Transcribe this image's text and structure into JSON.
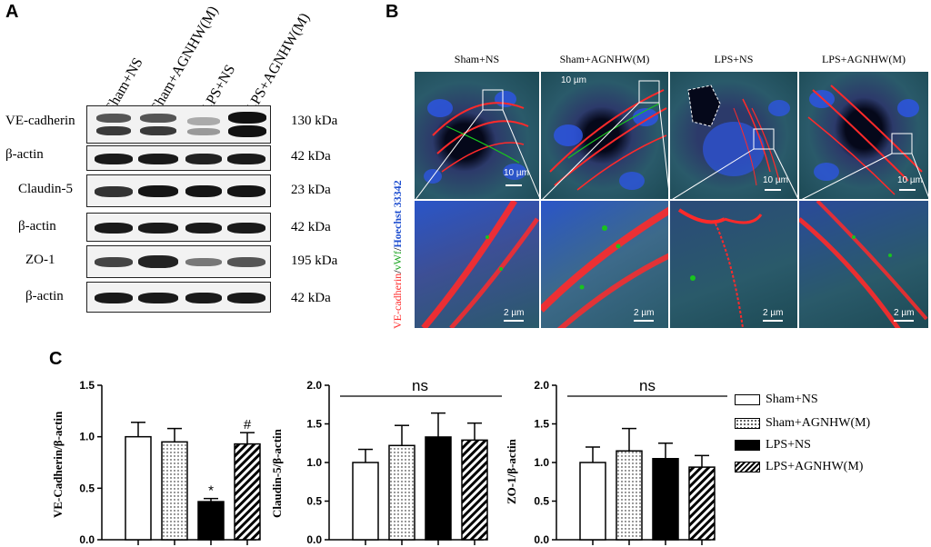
{
  "panels": {
    "a": "A",
    "b": "B",
    "c": "C"
  },
  "groups": [
    "Sham+NS",
    "Sham+AGNHW(M)",
    "LPS+NS",
    "LPS+AGNHW(M)"
  ],
  "blot": {
    "rows": [
      {
        "protein": "VE-cadherin",
        "kda": "130 kDa"
      },
      {
        "protein": "β-actin",
        "kda": "42 kDa"
      },
      {
        "protein": "Claudin-5",
        "kda": "23 kDa"
      },
      {
        "protein": "β-actin",
        "kda": "42 kDa"
      },
      {
        "protein": "ZO-1",
        "kda": "195 kDa"
      },
      {
        "protein": "β-actin",
        "kda": "42 kDa"
      }
    ]
  },
  "microscopy": {
    "stain_label": {
      "ve": "VE-cadherin",
      "sep1": "/",
      "vwf": "vWf",
      "sep2": "/",
      "hoechst": "Hoechst 33342"
    },
    "scale_top": "10 µm",
    "scale_bottom": "2 µm",
    "colors": {
      "red": "#ff2a2a",
      "green": "#19c41e",
      "blue": "#2f6bff"
    }
  },
  "chart_data": [
    {
      "type": "bar",
      "categories": [
        "Sham+NS",
        "Sham+AGNHW(M)",
        "LPS+NS",
        "LPS+AGNHW(M)"
      ],
      "values": [
        1.0,
        0.95,
        0.37,
        0.93
      ],
      "errors": [
        0.14,
        0.13,
        0.03,
        0.11
      ],
      "ylabel": "VE-Cadherin/β-actin",
      "ylim": [
        0,
        1.5
      ],
      "yticks": [
        "0.0",
        "0.5",
        "1.0",
        "1.5"
      ],
      "annotations": [
        "",
        "",
        "*",
        "#"
      ],
      "bracket": ""
    },
    {
      "type": "bar",
      "categories": [
        "Sham+NS",
        "Sham+AGNHW(M)",
        "LPS+NS",
        "LPS+AGNHW(M)"
      ],
      "values": [
        1.0,
        1.22,
        1.33,
        1.29
      ],
      "errors": [
        0.17,
        0.26,
        0.31,
        0.22
      ],
      "ylabel": "Claudin-5/β-actin",
      "ylim": [
        0,
        2.0
      ],
      "yticks": [
        "0.0",
        "0.5",
        "1.0",
        "1.5",
        "2.0"
      ],
      "annotations": [
        "",
        "",
        "",
        ""
      ],
      "bracket": "ns"
    },
    {
      "type": "bar",
      "categories": [
        "Sham+NS",
        "Sham+AGNHW(M)",
        "LPS+NS",
        "LPS+AGNHW(M)"
      ],
      "values": [
        1.0,
        1.15,
        1.05,
        0.94
      ],
      "errors": [
        0.2,
        0.29,
        0.2,
        0.15
      ],
      "ylabel": "ZO-1/β-actin",
      "ylim": [
        0,
        2.0
      ],
      "yticks": [
        "0.0",
        "0.5",
        "1.0",
        "1.5",
        "2.0"
      ],
      "annotations": [
        "",
        "",
        "",
        ""
      ],
      "bracket": "ns"
    }
  ],
  "legend": [
    "Sham+NS",
    "Sham+AGNHW(M)",
    "LPS+NS",
    "LPS+AGNHW(M)"
  ]
}
